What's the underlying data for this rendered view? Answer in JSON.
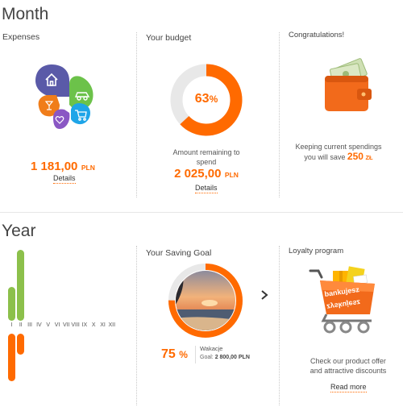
{
  "month": {
    "title": "Month",
    "expenses": {
      "title": "Expenses",
      "amount": "1 181,00",
      "currency": "PLN",
      "details": "Details",
      "petal_colors": [
        "#5a5aa8",
        "#6cc24a",
        "#1ea5e8",
        "#8a57c4",
        "#f07d1a"
      ],
      "petal_icons": [
        "home-icon",
        "car-icon",
        "cart-icon",
        "heart-icon",
        "drink-icon"
      ]
    },
    "budget": {
      "title": "Your budget",
      "percent": 63,
      "percent_label": "63",
      "percent_sign": "%",
      "caption": "Amount remaining to spend",
      "amount": "2 025,00",
      "currency": "PLN",
      "details": "Details"
    },
    "congrats": {
      "title": "Congratulations!",
      "text_line1": "Keeping current spendings",
      "text_line2": "you will save",
      "amount": "250",
      "currency": "ZŁ"
    }
  },
  "year": {
    "title": "Year",
    "months": [
      "I",
      "II",
      "III",
      "IV",
      "V",
      "VI",
      "VII",
      "VIII",
      "IX",
      "X",
      "XI",
      "XII"
    ],
    "income_levels": [
      0.48,
      1.0,
      0,
      0,
      0,
      0,
      0,
      0,
      0,
      0,
      0,
      0
    ],
    "expense_levels": [
      0.95,
      0.42,
      0,
      0,
      0,
      0,
      0,
      0,
      0,
      0,
      0,
      0
    ],
    "colors": {
      "income": "#8cc04b",
      "expense": "#ff6a00"
    },
    "saving": {
      "title": "Your Saving Goal",
      "percent": 75,
      "percent_label": "75",
      "percent_sign": "%",
      "goal_name": "Wakacje",
      "goal_label": "Goal:",
      "goal_amount": "2 800,00 PLN",
      "next_icon": "chevron-right-icon"
    },
    "loyalty": {
      "title": "Loyalty program",
      "brand": "bankujesz zyskujesz",
      "text_line1": "Check our product offer",
      "text_line2": "and attractive discounts",
      "read_more": "Read more"
    }
  },
  "colors": {
    "accent": "#ff6a00",
    "track": "#e8e8e8"
  }
}
